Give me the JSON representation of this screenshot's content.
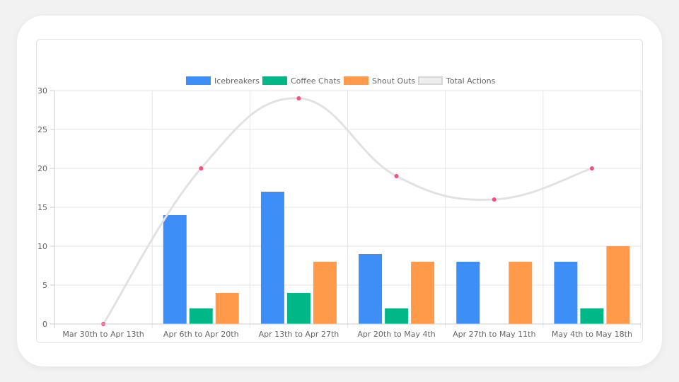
{
  "chart_data": {
    "type": "bar",
    "categories": [
      "Mar 30th to Apr 13th",
      "Apr 6th to Apr 20th",
      "Apr 13th to Apr 27th",
      "Apr 20th to May 4th",
      "Apr 27th to May 11th",
      "May 4th to May 18th"
    ],
    "series": [
      {
        "name": "Icebreakers",
        "type": "bar",
        "color": "#3e8ef7",
        "values": [
          0,
          14,
          17,
          9,
          8,
          8
        ]
      },
      {
        "name": "Coffee Chats",
        "type": "bar",
        "color": "#00b887",
        "values": [
          0,
          2,
          4,
          2,
          0,
          2
        ]
      },
      {
        "name": "Shout Outs",
        "type": "bar",
        "color": "#ff9a4a",
        "values": [
          0,
          4,
          8,
          8,
          8,
          10
        ]
      },
      {
        "name": "Total Actions",
        "type": "line",
        "color": "#e2e2e2",
        "point_color": "#f0527e",
        "values": [
          0,
          20,
          29,
          19,
          16,
          20
        ]
      }
    ],
    "y_ticks": [
      "0",
      "5",
      "10",
      "15",
      "20",
      "25",
      "30"
    ],
    "ylim": [
      0,
      30
    ],
    "grid": true,
    "legend_position": "top-center"
  }
}
